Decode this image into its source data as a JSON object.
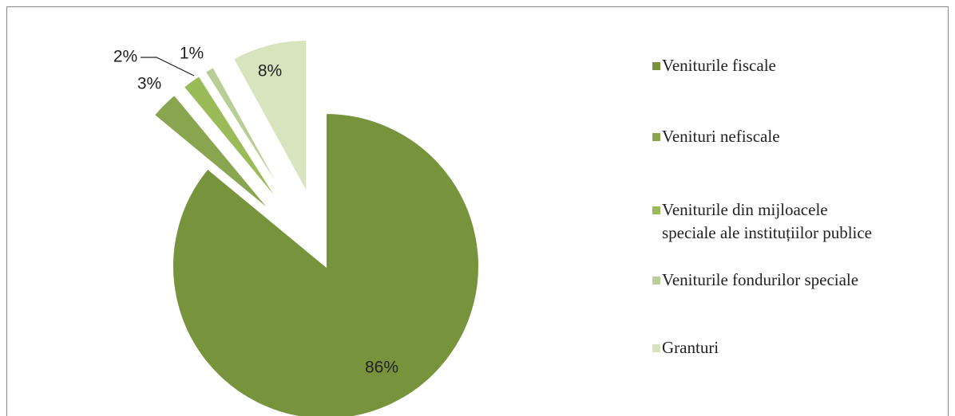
{
  "chart_data": {
    "type": "pie",
    "categories": [
      "Veniturile fiscale",
      "Venituri nefiscale",
      "Veniturile din mijloacele\nspeciale ale instituțiilor publice",
      "Veniturile fondurilor speciale",
      "Granturi"
    ],
    "values": [
      86,
      3,
      2,
      1,
      8
    ],
    "value_labels": [
      "86%",
      "3%",
      "2%",
      "1%",
      "8%"
    ],
    "colors": [
      "#77933c",
      "#8aa54f",
      "#9bbb59",
      "#b9cd96",
      "#d7e4bd"
    ],
    "legend": "right"
  }
}
